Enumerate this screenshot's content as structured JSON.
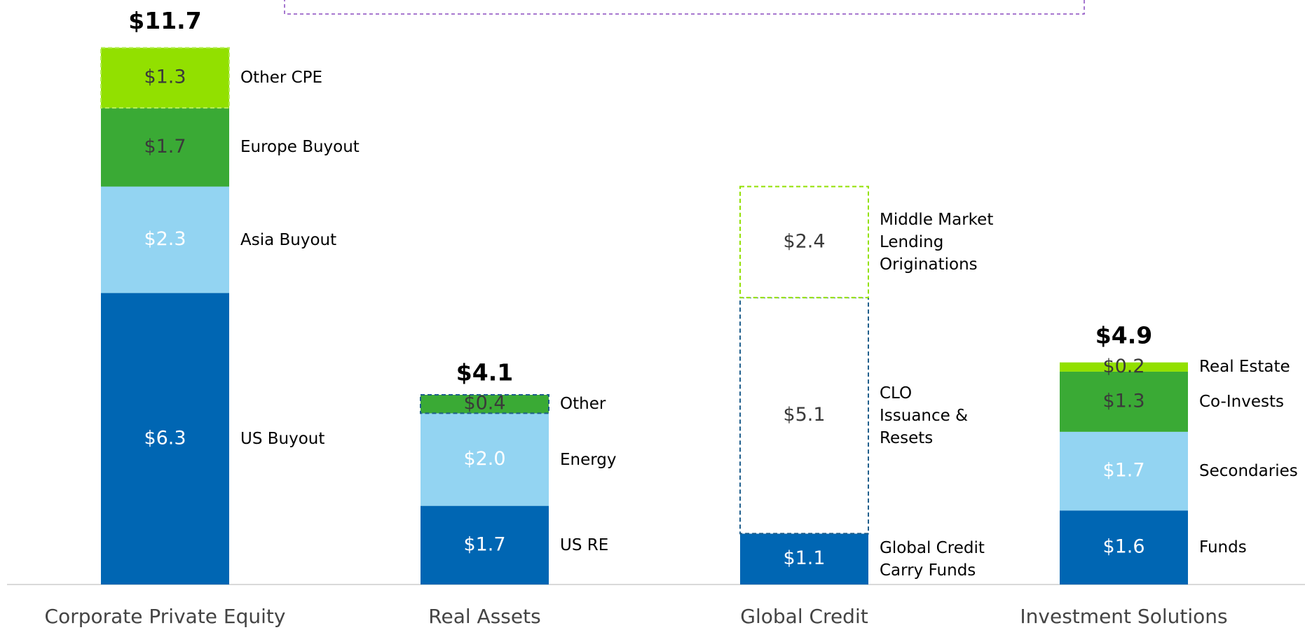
{
  "chart_data": {
    "type": "stacked-bar",
    "groups": [
      {
        "category": "Corporate Private Equity",
        "total": 11.7,
        "total_label": "$11.7",
        "segments": [
          {
            "name": "US Buyout",
            "value": 6.3,
            "value_label": "$6.3",
            "fill": "#0066b3",
            "label_color": "#ffffff"
          },
          {
            "name": "Asia Buyout",
            "value": 2.3,
            "value_label": "$2.3",
            "fill": "#93d4f2",
            "label_color": "#ffffff"
          },
          {
            "name": "Europe Buyout",
            "value": 1.7,
            "value_label": "$1.7",
            "fill": "#3aaa35",
            "label_color": "#3a3a3a"
          },
          {
            "name": "Other CPE",
            "value": 1.3,
            "value_label": "$1.3",
            "fill": "#92e000",
            "label_color": "#3a3a3a",
            "border": "#b6ee5a"
          }
        ]
      },
      {
        "category": "Real Assets",
        "total": 4.1,
        "total_label": "$4.1",
        "segments": [
          {
            "name": "US RE",
            "value": 1.7,
            "value_label": "$1.7",
            "fill": "#0066b3",
            "label_color": "#ffffff"
          },
          {
            "name": "Energy",
            "value": 2.0,
            "value_label": "$2.0",
            "fill": "#93d4f2",
            "label_color": "#ffffff"
          },
          {
            "name": "Other",
            "value": 0.4,
            "value_label": "$0.4",
            "fill": "#3aaa35",
            "label_color": "#3a3a3a",
            "border": "#1f5e8c"
          }
        ]
      },
      {
        "category": "Global Credit",
        "segments": [
          {
            "name": "Global Credit\nCarry Funds",
            "value": 1.1,
            "value_label": "$1.1",
            "fill": "#0066b3",
            "label_color": "#ffffff"
          },
          {
            "name": "CLO\nIssuance &\nResets",
            "value": 5.1,
            "value_label": "$5.1",
            "fill": "#ffffff",
            "label_color": "#3a3a3a",
            "border": "#1f5e8c"
          },
          {
            "name": "Middle Market\nLending\nOriginations",
            "value": 2.4,
            "value_label": "$2.4",
            "fill": "#ffffff",
            "label_color": "#3a3a3a",
            "border": "#92e000"
          }
        ]
      },
      {
        "category": "Investment Solutions",
        "total": 4.9,
        "total_label": "$4.9",
        "segments": [
          {
            "name": "Funds",
            "value": 1.6,
            "value_label": "$1.6",
            "fill": "#0066b3",
            "label_color": "#ffffff"
          },
          {
            "name": "Secondaries",
            "value": 1.7,
            "value_label": "$1.7",
            "fill": "#93d4f2",
            "label_color": "#ffffff"
          },
          {
            "name": "Co-Invests",
            "value": 1.3,
            "value_label": "$1.3",
            "fill": "#3aaa35",
            "label_color": "#3a3a3a"
          },
          {
            "name": "Real Estate",
            "value": 0.2,
            "value_label": "$0.2",
            "fill": "#92e000",
            "label_color": "#3a3a3a"
          }
        ]
      }
    ]
  }
}
